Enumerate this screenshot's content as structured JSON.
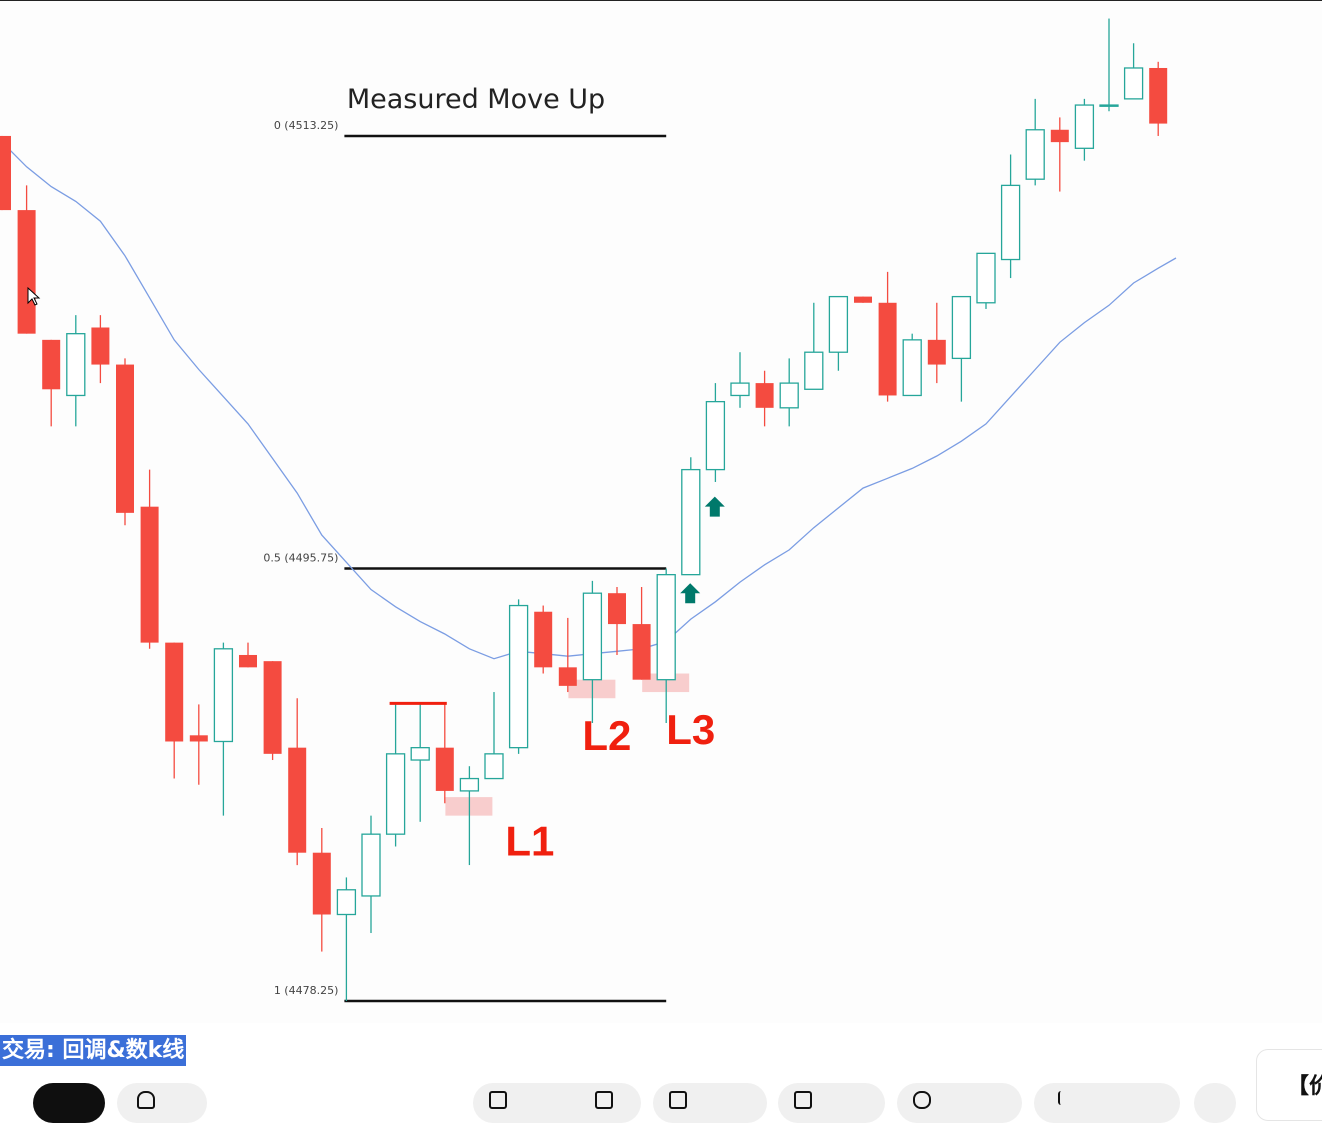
{
  "video": {
    "title": "交易: 回调&数k线",
    "side_card_text": "【价"
  },
  "chart_data": {
    "type": "candlestick",
    "title": "Measured Move Up",
    "colors": {
      "bull": "#26a69a",
      "bear": "#f44b40",
      "ma": "#7b9de3",
      "zone": "#f7c4c4",
      "arrow": "#00796b",
      "label": "#f0200f"
    },
    "candles": [
      {
        "o": 4513.25,
        "h": 4513.25,
        "l": 4510.25,
        "c": 4510.25
      },
      {
        "o": 4510.25,
        "h": 4511.25,
        "l": 4505.25,
        "c": 4505.25
      },
      {
        "o": 4505.0,
        "h": 4505.0,
        "l": 4501.5,
        "c": 4503.0
      },
      {
        "o": 4502.75,
        "h": 4506.0,
        "l": 4501.5,
        "c": 4505.25
      },
      {
        "o": 4505.5,
        "h": 4506.0,
        "l": 4503.25,
        "c": 4504.0
      },
      {
        "o": 4504.0,
        "h": 4504.25,
        "l": 4497.5,
        "c": 4498.0
      },
      {
        "o": 4498.25,
        "h": 4499.75,
        "l": 4492.5,
        "c": 4492.75
      },
      {
        "o": 4492.75,
        "h": 4492.75,
        "l": 4487.25,
        "c": 4488.75
      },
      {
        "o": 4489.0,
        "h": 4490.25,
        "l": 4487.0,
        "c": 4488.75
      },
      {
        "o": 4488.75,
        "h": 4492.75,
        "l": 4485.75,
        "c": 4492.5
      },
      {
        "o": 4492.25,
        "h": 4492.75,
        "l": 4491.75,
        "c": 4491.75
      },
      {
        "o": 4492.0,
        "h": 4492.0,
        "l": 4488.0,
        "c": 4488.25
      },
      {
        "o": 4488.5,
        "h": 4490.5,
        "l": 4483.75,
        "c": 4484.25
      },
      {
        "o": 4484.25,
        "h": 4485.25,
        "l": 4480.25,
        "c": 4481.75
      },
      {
        "o": 4481.75,
        "h": 4483.25,
        "l": 4478.25,
        "c": 4482.75
      },
      {
        "o": 4482.5,
        "h": 4485.75,
        "l": 4481.0,
        "c": 4485.0
      },
      {
        "o": 4485.0,
        "h": 4490.25,
        "l": 4484.5,
        "c": 4488.25
      },
      {
        "o": 4488.0,
        "h": 4490.25,
        "l": 4485.5,
        "c": 4488.5
      },
      {
        "o": 4488.5,
        "h": 4490.25,
        "l": 4486.25,
        "c": 4486.75
      },
      {
        "o": 4486.75,
        "h": 4487.75,
        "l": 4483.75,
        "c": 4487.25
      },
      {
        "o": 4487.25,
        "h": 4490.75,
        "l": 4487.25,
        "c": 4488.25
      },
      {
        "o": 4488.5,
        "h": 4494.5,
        "l": 4488.25,
        "c": 4494.25
      },
      {
        "o": 4494.0,
        "h": 4494.25,
        "l": 4491.5,
        "c": 4491.75
      },
      {
        "o": 4491.75,
        "h": 4493.75,
        "l": 4490.75,
        "c": 4491.0
      },
      {
        "o": 4491.25,
        "h": 4495.25,
        "l": 4489.5,
        "c": 4494.75
      },
      {
        "o": 4494.75,
        "h": 4495.0,
        "l": 4492.25,
        "c": 4493.5
      },
      {
        "o": 4493.5,
        "h": 4495.0,
        "l": 4491.25,
        "c": 4491.25
      },
      {
        "o": 4491.25,
        "h": 4495.75,
        "l": 4489.5,
        "c": 4495.5
      },
      {
        "o": 4495.5,
        "h": 4500.25,
        "l": 4495.5,
        "c": 4499.75
      },
      {
        "o": 4499.75,
        "h": 4503.25,
        "l": 4499.25,
        "c": 4502.5
      },
      {
        "o": 4502.75,
        "h": 4504.5,
        "l": 4502.25,
        "c": 4503.25
      },
      {
        "o": 4503.25,
        "h": 4503.75,
        "l": 4501.5,
        "c": 4502.25
      },
      {
        "o": 4502.25,
        "h": 4504.25,
        "l": 4501.5,
        "c": 4503.25
      },
      {
        "o": 4503.0,
        "h": 4506.5,
        "l": 4503.0,
        "c": 4504.5
      },
      {
        "o": 4504.5,
        "h": 4506.75,
        "l": 4503.75,
        "c": 4506.75
      },
      {
        "o": 4506.75,
        "h": 4506.75,
        "l": 4506.5,
        "c": 4506.5
      },
      {
        "o": 4506.5,
        "h": 4507.75,
        "l": 4502.5,
        "c": 4502.75
      },
      {
        "o": 4502.75,
        "h": 4505.25,
        "l": 4502.75,
        "c": 4505.0
      },
      {
        "o": 4505.0,
        "h": 4506.5,
        "l": 4503.25,
        "c": 4504.0
      },
      {
        "o": 4504.25,
        "h": 4506.75,
        "l": 4502.5,
        "c": 4506.75
      },
      {
        "o": 4506.5,
        "h": 4508.5,
        "l": 4506.25,
        "c": 4508.5
      },
      {
        "o": 4508.25,
        "h": 4512.5,
        "l": 4507.5,
        "c": 4511.25
      },
      {
        "o": 4511.5,
        "h": 4514.75,
        "l": 4511.25,
        "c": 4513.5
      },
      {
        "o": 4513.5,
        "h": 4514.0,
        "l": 4511.0,
        "c": 4513.0
      },
      {
        "o": 4512.75,
        "h": 4514.75,
        "l": 4512.25,
        "c": 4514.5
      },
      {
        "o": 4514.5,
        "h": 4518.0,
        "l": 4514.25,
        "c": 4514.5
      },
      {
        "o": 4514.75,
        "h": 4517.0,
        "l": 4514.75,
        "c": 4516.0
      },
      {
        "o": 4516.0,
        "h": 4516.25,
        "l": 4513.25,
        "c": 4513.75
      }
    ],
    "moving_average": [
      4513.0,
      4512.0,
      4511.2,
      4510.6,
      4509.8,
      4508.4,
      4506.7,
      4505.0,
      4503.8,
      4502.7,
      4501.6,
      4500.2,
      4498.8,
      4497.1,
      4496.0,
      4494.9,
      4494.2,
      4493.6,
      4493.1,
      4492.5,
      4492.1,
      4492.4,
      4492.3,
      4492.2,
      4492.3,
      4492.4,
      4492.5,
      4492.8,
      4493.7,
      4494.4,
      4495.2,
      4495.9,
      4496.5,
      4497.4,
      4498.2,
      4499.0,
      4499.4,
      4499.8,
      4500.3,
      4500.9,
      4501.6,
      4502.7,
      4503.8,
      4504.9,
      4505.7,
      4506.4,
      4507.3,
      4507.9
    ],
    "fib_levels": [
      {
        "label": "0 (4513.25)",
        "price": 4513.25
      },
      {
        "label": "0.5 (4495.75)",
        "price": 4495.75
      },
      {
        "label": "1 (4478.25)",
        "price": 4478.25
      }
    ],
    "fib_range_candles": [
      15,
      28
    ],
    "signal_bar_high": {
      "price": 4490.25,
      "from_candle": 17,
      "to_candle": 19
    },
    "legs": [
      {
        "label": "L1",
        "candle": 20,
        "zone": [
          4485.75,
          4486.5
        ]
      },
      {
        "label": "L2",
        "candle": 25,
        "zone": [
          4490.5,
          4491.25
        ]
      },
      {
        "label": "L3",
        "candle": 28,
        "zone": [
          4490.75,
          4491.5
        ]
      }
    ],
    "up_arrows": [
      {
        "candle": 28,
        "price": 4494.75
      },
      {
        "candle": 29,
        "price": 4498.25
      }
    ]
  }
}
